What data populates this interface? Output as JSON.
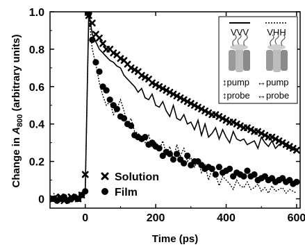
{
  "chart_data": {
    "type": "scatter",
    "xlabel": "Time (ps)",
    "ylabel_prefix": "Change in ",
    "ylabel_var": "A",
    "ylabel_sub": "800",
    "ylabel_suffix": " (arbitrary units)",
    "xlim": [
      -100,
      610
    ],
    "ylim": [
      -0.05,
      1.0
    ],
    "x_ticks": [
      0,
      200,
      400,
      600
    ],
    "x_tick_labels": [
      "0",
      "200",
      "400",
      "600"
    ],
    "y_ticks": [
      0,
      0.2,
      0.4,
      0.6,
      0.8,
      1.0
    ],
    "y_tick_labels": [
      "0",
      "0.2",
      "0.4",
      "0.6",
      "0.8",
      "1.0"
    ],
    "legend": {
      "position": "bottom-left",
      "entries": [
        {
          "label": "Solution",
          "marker": "x"
        },
        {
          "label": "Film",
          "marker": "circle"
        }
      ]
    },
    "inset": {
      "position": "top-right",
      "left": {
        "label": "VVV",
        "line": "solid",
        "pump_label": "↕pump",
        "probe_label": "↕probe"
      },
      "right": {
        "label": "VHH",
        "line": "dotted",
        "pump_label": "↔pump",
        "probe_label": "↔probe"
      }
    },
    "series": [
      {
        "name": "Solution",
        "style": "x-marker",
        "x": [
          -90,
          -80,
          -70,
          -60,
          -50,
          -40,
          -30,
          -20,
          -10,
          0,
          10,
          20,
          30,
          40,
          50,
          60,
          70,
          80,
          90,
          100,
          110,
          120,
          130,
          140,
          150,
          160,
          170,
          180,
          190,
          200,
          210,
          220,
          230,
          240,
          250,
          260,
          270,
          280,
          290,
          300,
          310,
          320,
          330,
          340,
          350,
          360,
          370,
          380,
          390,
          400,
          410,
          420,
          430,
          440,
          450,
          460,
          470,
          480,
          490,
          500,
          510,
          520,
          530,
          540,
          550,
          560,
          570,
          580,
          590,
          600
        ],
        "y": [
          0.0,
          0.0,
          0.01,
          -0.01,
          0.0,
          0.01,
          0.0,
          0.0,
          0.02,
          0.13,
          0.98,
          0.94,
          0.88,
          0.86,
          0.83,
          0.8,
          0.8,
          0.78,
          0.77,
          0.75,
          0.74,
          0.72,
          0.7,
          0.69,
          0.68,
          0.66,
          0.65,
          0.64,
          0.62,
          0.61,
          0.6,
          0.59,
          0.58,
          0.57,
          0.56,
          0.55,
          0.54,
          0.53,
          0.52,
          0.51,
          0.5,
          0.49,
          0.48,
          0.47,
          0.46,
          0.45,
          0.45,
          0.44,
          0.43,
          0.42,
          0.41,
          0.41,
          0.4,
          0.39,
          0.38,
          0.38,
          0.37,
          0.36,
          0.36,
          0.35,
          0.34,
          0.33,
          0.33,
          0.32,
          0.31,
          0.3,
          0.29,
          0.28,
          0.27,
          0.26
        ]
      },
      {
        "name": "Film",
        "style": "circle-marker",
        "x": [
          -90,
          -80,
          -70,
          -60,
          -50,
          -40,
          -30,
          -20,
          -10,
          0,
          10,
          20,
          30,
          40,
          50,
          60,
          70,
          80,
          90,
          100,
          110,
          120,
          130,
          140,
          150,
          160,
          170,
          180,
          190,
          200,
          210,
          220,
          230,
          240,
          250,
          260,
          270,
          280,
          290,
          300,
          310,
          320,
          330,
          340,
          350,
          360,
          370,
          380,
          390,
          400,
          410,
          420,
          430,
          440,
          450,
          460,
          470,
          480,
          490,
          500,
          510,
          520,
          530,
          540,
          550,
          560,
          570,
          580,
          590,
          600
        ],
        "y": [
          0.0,
          -0.01,
          0.0,
          0.01,
          -0.01,
          0.0,
          0.01,
          0.0,
          0.02,
          0.04,
          0.99,
          0.85,
          0.73,
          0.68,
          0.6,
          0.58,
          0.53,
          0.5,
          0.48,
          0.44,
          0.43,
          0.4,
          0.39,
          0.34,
          0.33,
          0.32,
          0.33,
          0.29,
          0.3,
          0.28,
          0.27,
          0.23,
          0.25,
          0.24,
          0.21,
          0.24,
          0.21,
          0.19,
          0.23,
          0.18,
          0.2,
          0.2,
          0.18,
          0.16,
          0.17,
          0.16,
          0.13,
          0.17,
          0.14,
          0.15,
          0.16,
          0.12,
          0.14,
          0.13,
          0.12,
          0.15,
          0.12,
          0.13,
          0.1,
          0.11,
          0.12,
          0.1,
          0.11,
          0.09,
          0.1,
          0.11,
          0.09,
          0.1,
          0.08,
          0.09
        ]
      },
      {
        "name": "VVV",
        "style": "solid-line",
        "x": [
          -90,
          -80,
          -70,
          -60,
          -50,
          -40,
          -30,
          -20,
          -10,
          0,
          10,
          20,
          30,
          40,
          50,
          60,
          70,
          80,
          90,
          100,
          110,
          120,
          130,
          140,
          150,
          160,
          170,
          180,
          190,
          200,
          210,
          220,
          230,
          240,
          250,
          260,
          270,
          280,
          290,
          300,
          310,
          320,
          330,
          340,
          350,
          360,
          370,
          380,
          390,
          400,
          410,
          420,
          430,
          440,
          450,
          460,
          470,
          480,
          490,
          500,
          510,
          520,
          530,
          540,
          550,
          560,
          570,
          580,
          590,
          600
        ],
        "y": [
          0.0,
          0.02,
          -0.01,
          0.02,
          0.0,
          -0.01,
          0.01,
          0.0,
          0.02,
          0.05,
          1.0,
          0.88,
          0.84,
          0.8,
          0.78,
          0.76,
          0.74,
          0.73,
          0.71,
          0.7,
          0.66,
          0.64,
          0.62,
          0.6,
          0.57,
          0.59,
          0.54,
          0.53,
          0.56,
          0.5,
          0.49,
          0.52,
          0.47,
          0.44,
          0.5,
          0.43,
          0.42,
          0.45,
          0.4,
          0.41,
          0.37,
          0.42,
          0.34,
          0.4,
          0.33,
          0.35,
          0.38,
          0.32,
          0.37,
          0.33,
          0.3,
          0.36,
          0.32,
          0.31,
          0.32,
          0.29,
          0.3,
          0.31,
          0.27,
          0.33,
          0.3,
          0.28,
          0.31,
          0.27,
          0.29,
          0.3,
          0.28,
          0.27,
          0.26,
          0.27
        ]
      },
      {
        "name": "VHH",
        "style": "dotted-line",
        "x": [
          -90,
          -80,
          -70,
          -60,
          -50,
          -40,
          -30,
          -20,
          -10,
          0,
          10,
          20,
          30,
          40,
          50,
          60,
          70,
          80,
          90,
          100,
          110,
          120,
          130,
          140,
          150,
          160,
          170,
          180,
          190,
          200,
          210,
          220,
          230,
          240,
          250,
          260,
          270,
          280,
          290,
          300,
          310,
          320,
          330,
          340,
          350,
          360,
          370,
          380,
          390,
          400,
          410,
          420,
          430,
          440,
          450,
          460,
          470,
          480,
          490,
          500,
          510,
          520,
          530,
          540,
          550,
          560,
          570,
          580,
          590,
          600
        ],
        "y": [
          0.03,
          0.0,
          -0.01,
          0.02,
          0.0,
          -0.02,
          0.01,
          0.0,
          0.01,
          0.02,
          0.98,
          0.8,
          0.72,
          0.62,
          0.55,
          0.5,
          0.52,
          0.45,
          0.48,
          0.53,
          0.47,
          0.4,
          0.43,
          0.36,
          0.35,
          0.33,
          0.3,
          0.34,
          0.28,
          0.3,
          0.26,
          0.31,
          0.24,
          0.28,
          0.21,
          0.29,
          0.23,
          0.27,
          0.2,
          0.22,
          0.17,
          0.21,
          0.14,
          0.18,
          0.1,
          0.16,
          0.13,
          0.07,
          0.12,
          0.1,
          0.08,
          0.05,
          0.1,
          0.07,
          0.06,
          0.09,
          0.05,
          0.06,
          0.08,
          0.04,
          0.06,
          0.03,
          0.07,
          0.04,
          0.05,
          0.06,
          0.03,
          0.05,
          0.04,
          0.03
        ]
      }
    ]
  }
}
